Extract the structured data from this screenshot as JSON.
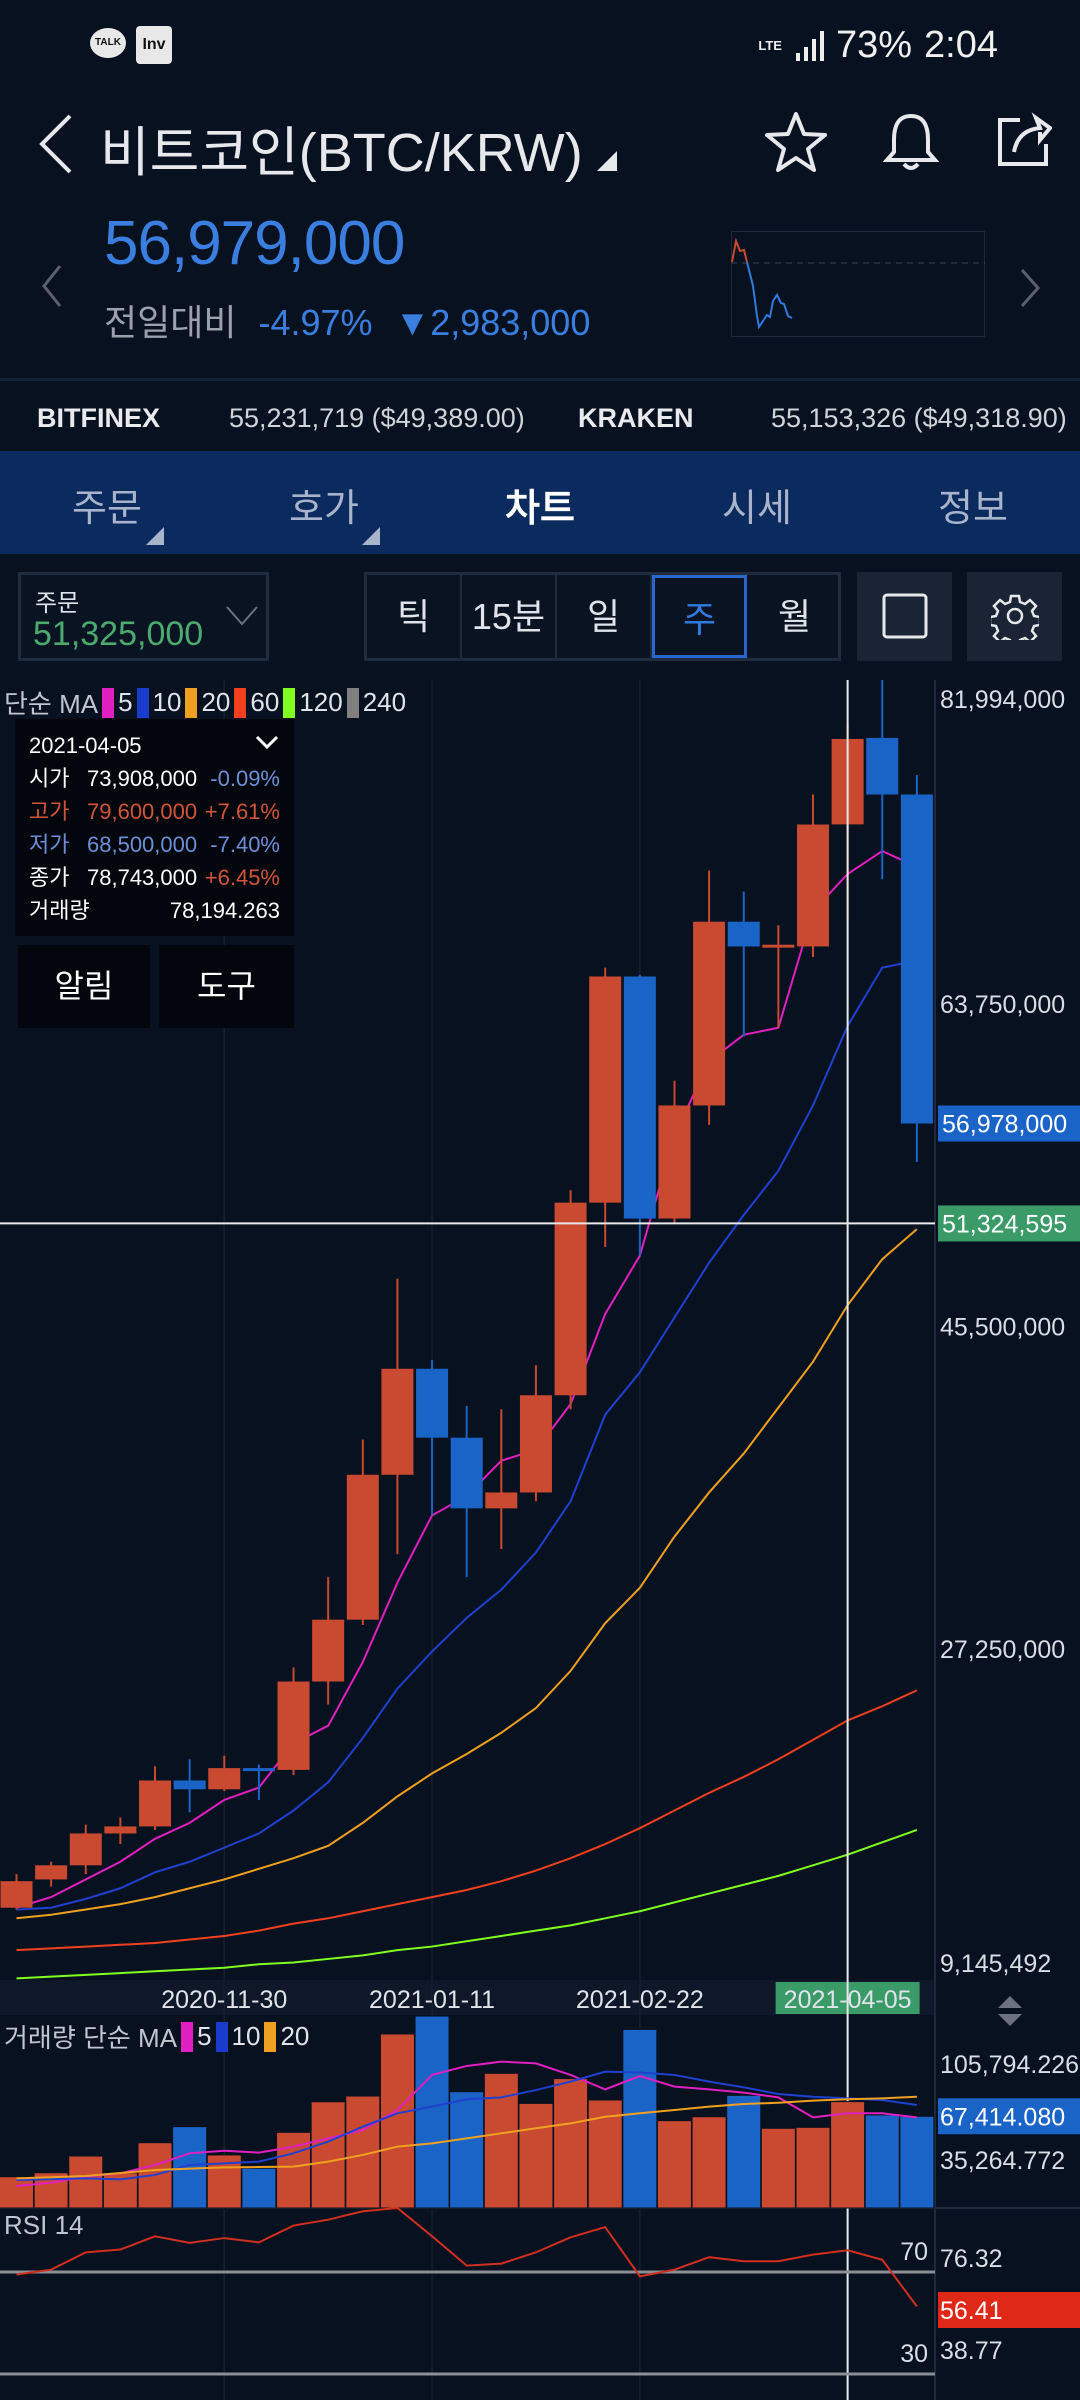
{
  "status_bar": {
    "app_icons": [
      "kakaotalk-icon",
      "investing-icon"
    ],
    "talk": "TALK",
    "inv": "Inv",
    "network": "LTE",
    "battery": "73%",
    "time": "2:04"
  },
  "header": {
    "title": "비트코인(BTC/KRW)",
    "icons": [
      "back-icon",
      "star-icon",
      "bell-icon",
      "share-icon"
    ]
  },
  "quote": {
    "price": "56,979,000",
    "change_label": "전일대비",
    "change_pct": "-4.97%",
    "change_amt": "▼2,983,000",
    "color": "#3a7fe0"
  },
  "exchanges": [
    {
      "name": "BITFINEX",
      "value": "55,231,719 ($49,389.00)"
    },
    {
      "name": "KRAKEN",
      "value": "55,153,326 ($49,318.90)"
    }
  ],
  "tabs": [
    {
      "label": "주문"
    },
    {
      "label": "호가"
    },
    {
      "label": "차트",
      "active": true
    },
    {
      "label": "시세"
    },
    {
      "label": "정보"
    }
  ],
  "toolbar": {
    "order_label": "주문",
    "order_value": "51,325,000",
    "intervals": [
      "틱",
      "15분",
      "일",
      "주",
      "월"
    ],
    "selected_interval": "주"
  },
  "legend": {
    "label": "단순 MA",
    "items": [
      {
        "p": "5",
        "c": "#e020c0"
      },
      {
        "p": "10",
        "c": "#1a3ccc"
      },
      {
        "p": "20",
        "c": "#f0a020"
      },
      {
        "p": "60",
        "c": "#f04020"
      },
      {
        "p": "120",
        "c": "#80ff20"
      },
      {
        "p": "240",
        "c": "#808080"
      }
    ]
  },
  "tooltip": {
    "date": "2021-04-05",
    "rows": [
      {
        "k": "시가",
        "v": "73,908,000",
        "p": "-0.09%",
        "kc": "#ffffff",
        "vc": "#ffffff",
        "pc": "#6d8fd8"
      },
      {
        "k": "고가",
        "v": "79,600,000",
        "p": "+7.61%",
        "kc": "#d0553a",
        "vc": "#d0553a",
        "pc": "#d0553a"
      },
      {
        "k": "저가",
        "v": "68,500,000",
        "p": "-7.40%",
        "kc": "#6d8fd8",
        "vc": "#6d8fd8",
        "pc": "#6d8fd8"
      },
      {
        "k": "종가",
        "v": "78,743,000",
        "p": "+6.45%",
        "kc": "#ffffff",
        "vc": "#ffffff",
        "pc": "#d0553a"
      }
    ],
    "volume_label": "거래량",
    "volume": "78,194.263"
  },
  "chart_buttons": {
    "alert": "알림",
    "tools": "도구"
  },
  "chart_data": {
    "type": "candlestick",
    "interval": "weekly",
    "date_ticks": [
      {
        "i": 6,
        "label": "2020-11-30"
      },
      {
        "i": 12,
        "label": "2021-01-11"
      },
      {
        "i": 18,
        "label": "2021-02-22"
      },
      {
        "i": 24,
        "label": "2021-04-05",
        "highlight": true
      }
    ],
    "price_axis": [
      "81,994,000",
      "63,750,000",
      "45,500,000",
      "27,250,000",
      "9,145,492"
    ],
    "price_axis_values": [
      81.994,
      63.75,
      45.5,
      27.25,
      9.145
    ],
    "unit": "million KRW",
    "current_price_label": "56,978,000",
    "current_price": 56.978,
    "crosshair_label": "51,324,595",
    "crosshair_price": 51.3246,
    "crosshair_index": 24,
    "up_color": "#c94a30",
    "down_color": "#1a64c8",
    "candles": [
      [
        12.6,
        14.5,
        12.5,
        14.1
      ],
      [
        14.2,
        15.2,
        13.8,
        15.0
      ],
      [
        15.0,
        17.3,
        14.5,
        16.8
      ],
      [
        16.8,
        17.7,
        16.2,
        17.2
      ],
      [
        17.2,
        20.6,
        17.0,
        19.8
      ],
      [
        19.8,
        21.0,
        18.0,
        19.3
      ],
      [
        19.3,
        21.2,
        19.2,
        20.5
      ],
      [
        20.5,
        20.7,
        18.7,
        20.4
      ],
      [
        20.4,
        26.2,
        20.1,
        25.4
      ],
      [
        25.4,
        31.3,
        24.1,
        28.9
      ],
      [
        28.9,
        39.1,
        28.6,
        37.1
      ],
      [
        37.1,
        48.2,
        32.6,
        43.1
      ],
      [
        43.1,
        43.6,
        34.8,
        39.2
      ],
      [
        39.2,
        41.0,
        31.3,
        35.2
      ],
      [
        35.2,
        40.8,
        32.9,
        36.1
      ],
      [
        36.1,
        43.3,
        35.6,
        41.6
      ],
      [
        41.6,
        53.2,
        40.8,
        52.5
      ],
      [
        52.5,
        65.8,
        50.0,
        65.3
      ],
      [
        65.3,
        65.4,
        49.5,
        51.6
      ],
      [
        51.6,
        59.4,
        51.3,
        58.0
      ],
      [
        58.0,
        71.3,
        56.9,
        68.4
      ],
      [
        68.4,
        70.1,
        61.9,
        67.0
      ],
      [
        67.0,
        68.2,
        62.4,
        67.1
      ],
      [
        67.0,
        75.6,
        66.4,
        73.9
      ],
      [
        73.908,
        79.6,
        68.5,
        78.743
      ],
      [
        78.8,
        82.2,
        70.8,
        75.6
      ],
      [
        75.6,
        76.7,
        54.8,
        56.98
      ]
    ],
    "ma": {
      "5": [
        12.6,
        13.2,
        14.2,
        15.2,
        16.5,
        17.4,
        18.7,
        19.4,
        21.9,
        22.9,
        26.5,
        31.0,
        34.8,
        35.9,
        37.9,
        38.5,
        41.1,
        46.2,
        49.5,
        56.3,
        60.5,
        62.0,
        62.4,
        69.0,
        71.1,
        72.4,
        71.5
      ],
      "10": [
        12.5,
        12.6,
        13.1,
        13.7,
        14.6,
        15.2,
        16.0,
        16.8,
        18.1,
        19.7,
        22.2,
        25.0,
        27.1,
        29.0,
        30.6,
        32.7,
        35.6,
        40.5,
        42.9,
        46.0,
        49.1,
        51.8,
        54.3,
        58.0,
        62.5,
        65.8,
        66.2
      ],
      "20": [
        12.0,
        12.2,
        12.5,
        12.8,
        13.2,
        13.7,
        14.2,
        14.8,
        15.4,
        16.1,
        17.4,
        18.9,
        20.2,
        21.3,
        22.5,
        23.9,
        26.0,
        28.7,
        30.7,
        33.6,
        36.1,
        38.3,
        40.9,
        43.5,
        46.7,
        49.3,
        51.0
      ],
      "60": [
        10.2,
        10.3,
        10.4,
        10.5,
        10.6,
        10.8,
        11.0,
        11.3,
        11.7,
        12.0,
        12.4,
        12.8,
        13.2,
        13.6,
        14.1,
        14.7,
        15.4,
        16.2,
        17.1,
        18.1,
        19.1,
        20.0,
        21.0,
        22.1,
        23.2,
        24.0,
        24.9
      ],
      "120": [
        8.6,
        8.7,
        8.8,
        8.9,
        9.0,
        9.1,
        9.2,
        9.4,
        9.5,
        9.7,
        9.9,
        10.2,
        10.4,
        10.7,
        11.0,
        11.3,
        11.6,
        12.0,
        12.4,
        12.9,
        13.4,
        13.9,
        14.4,
        15.0,
        15.6,
        16.3,
        17.0
      ]
    },
    "volume": {
      "label": "거래량 단순 MA",
      "legend": [
        {
          "p": "5",
          "c": "#e020c0"
        },
        {
          "p": "10",
          "c": "#1a3ccc"
        },
        {
          "p": "20",
          "c": "#f0a020"
        }
      ],
      "axis": [
        "105,794.226",
        "67,414.080",
        "35,264.772"
      ],
      "axis_values": [
        105794.226,
        67414.08,
        35264.772
      ],
      "current_index": 1,
      "values": [
        23.0,
        25.9,
        38.2,
        25.9,
        48.0,
        59.8,
        39.0,
        29.2,
        55.6,
        78.1,
        82.3,
        127.9,
        141.1,
        85.5,
        99.0,
        76.9,
        95.1,
        79.4,
        131.3,
        64.2,
        67.1,
        82.8,
        58.6,
        59.3,
        78.194,
        68.4,
        67.414
      ],
      "unit": "thousand",
      "ma5": [
        16.2,
        18.6,
        23.0,
        25.5,
        31.6,
        40.2,
        42.1,
        40.7,
        45.1,
        51.2,
        57.3,
        72.0,
        97.8,
        104.4,
        107.6,
        106.3,
        97.8,
        87.2,
        97.0,
        89.2,
        87.2,
        84.8,
        81.3,
        66.6,
        69.6,
        69.6,
        66.6
      ],
      "ma10": [
        20.6,
        21.2,
        21.8,
        21.0,
        24.3,
        31.6,
        32.8,
        34.1,
        40.2,
        48.8,
        59.8,
        69.6,
        74.5,
        79.9,
        81.3,
        86.7,
        92.9,
        100.2,
        99.6,
        97.8,
        92.9,
        88.7,
        83.8,
        81.8,
        80.6,
        79.4,
        75.7
      ],
      "ma20": [
        21.8,
        22.6,
        23.5,
        25.7,
        27.9,
        28.9,
        29.9,
        30.1,
        30.4,
        34.1,
        39.0,
        45.1,
        47.5,
        51.2,
        54.9,
        58.6,
        62.2,
        67.1,
        69.6,
        72.0,
        74.5,
        76.4,
        77.4,
        78.9,
        79.9,
        80.6,
        81.8
      ]
    },
    "rsi": {
      "label": "RSI 14",
      "levels": [
        "70",
        "30"
      ],
      "level_values": [
        70,
        30
      ],
      "axis": [
        "76.32",
        "56.41",
        "38.77"
      ],
      "current": "56.41",
      "color": "#d03020",
      "values": [
        69.0,
        70.9,
        77.7,
        78.8,
        84.0,
        81.4,
        83.3,
        81.6,
        88.2,
        90.5,
        93.8,
        95.1,
        84.0,
        72.5,
        73.3,
        77.7,
        83.6,
        87.6,
        68.3,
        70.9,
        75.8,
        74.2,
        74.2,
        76.8,
        78.5,
        74.8,
        56.5
      ]
    }
  }
}
